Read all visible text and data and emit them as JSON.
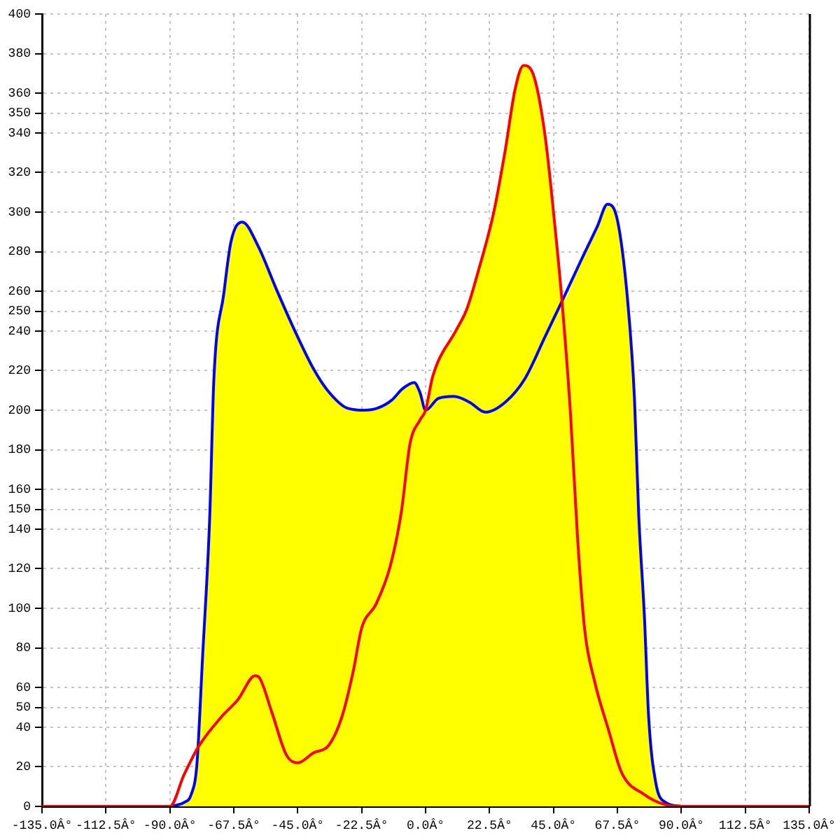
{
  "chart_data": {
    "type": "line",
    "xlim": [
      -135,
      135
    ],
    "xticks": [
      {
        "value": -135,
        "label": "-135.0Â°"
      },
      {
        "value": -112.5,
        "label": "-112.5Â°"
      },
      {
        "value": -90,
        "label": "-90.0Â°"
      },
      {
        "value": -67.5,
        "label": "-67.5Â°"
      },
      {
        "value": -45,
        "label": "-45.0Â°"
      },
      {
        "value": -22.5,
        "label": "-22.5Â°"
      },
      {
        "value": 0,
        "label": "0.0Â°"
      },
      {
        "value": 22.5,
        "label": "22.5Â°"
      },
      {
        "value": 45,
        "label": "45.0Â°"
      },
      {
        "value": 67.5,
        "label": "67.5Â°"
      },
      {
        "value": 90,
        "label": "90.0Â°"
      },
      {
        "value": 112.5,
        "label": "112.5Â°"
      },
      {
        "value": 135,
        "label": "135.0Â°"
      }
    ],
    "ylim": [
      0,
      400
    ],
    "yticks": [
      0,
      20,
      40,
      50,
      60,
      80,
      100,
      120,
      140,
      150,
      160,
      180,
      200,
      220,
      240,
      250,
      260,
      280,
      300,
      320,
      340,
      350,
      360,
      380,
      400
    ],
    "grid": true,
    "series": [
      {
        "type": "area",
        "color": "#ffff00",
        "x": [
          -90,
          -85,
          -82.5,
          -80.5,
          -78.5,
          -76,
          -74.5,
          -71,
          -68.5,
          -64.5,
          -59,
          -52.5,
          -46,
          -39.5,
          -34.5,
          -27.5,
          -21.5,
          -17,
          -12,
          -8,
          -4,
          -2,
          0,
          2.5,
          11,
          14.5,
          18.5,
          24,
          28,
          31.5,
          34.5,
          38,
          42,
          45.5,
          48,
          54.5,
          60.5,
          64,
          67.5,
          71,
          73.5,
          75,
          77,
          78.5,
          81,
          84.5,
          90
        ],
        "values": [
          0,
          2,
          6,
          21,
          75,
          145,
          216,
          259,
          285,
          295,
          283,
          261,
          240,
          221,
          210,
          201,
          200,
          201,
          205,
          211,
          214,
          209,
          200,
          217,
          241,
          251,
          270,
          300,
          331,
          362,
          374,
          369,
          339,
          293,
          255,
          275,
          293,
          304,
          296,
          257,
          206,
          147,
          96,
          45,
          12,
          2,
          0
        ]
      },
      {
        "type": "line",
        "color": "#0000ff",
        "x": [
          -90,
          -85,
          -82.5,
          -80.5,
          -78.5,
          -76,
          -74.5,
          -71,
          -68.5,
          -64.5,
          -59,
          -52.5,
          -46,
          -39.5,
          -34.5,
          -27.5,
          -21.5,
          -17,
          -12,
          -8,
          -4,
          -2,
          0,
          4.5,
          10,
          15.5,
          21,
          28,
          35,
          42,
          48,
          54.5,
          60.5,
          64,
          67.5,
          71,
          73.5,
          75,
          77,
          78.5,
          81,
          84.5,
          90
        ],
        "values": [
          0,
          2,
          6,
          21,
          75,
          145,
          216,
          259,
          285,
          295,
          283,
          261,
          240,
          221,
          210,
          201,
          200,
          201,
          205,
          211,
          214,
          209,
          200,
          206,
          207,
          204,
          199,
          204,
          216,
          237,
          255,
          275,
          293,
          304,
          296,
          257,
          206,
          147,
          96,
          45,
          12,
          2,
          0
        ]
      },
      {
        "type": "line",
        "color": "#ff0000",
        "x": [
          -135,
          -90,
          -85,
          -80,
          -72,
          -66,
          -60,
          -58.5,
          -54,
          -49,
          -45,
          -39.5,
          -34,
          -29.5,
          -25.5,
          -22.5,
          -17.5,
          -12.5,
          -8.5,
          -5.5,
          -2,
          0,
          2.5,
          11,
          14.5,
          18.5,
          24,
          28,
          31.5,
          34.5,
          38,
          42,
          45.5,
          48,
          51,
          53.5,
          56,
          59.5,
          64.5,
          69,
          77,
          84,
          90,
          135
        ],
        "values": [
          0,
          0,
          16,
          30,
          45,
          54,
          66,
          65,
          47,
          26,
          22,
          27,
          31,
          45,
          68,
          90,
          102,
          121,
          149,
          183,
          195,
          200,
          217,
          241,
          251,
          270,
          300,
          331,
          362,
          374,
          369,
          339,
          293,
          255,
          198,
          135,
          89,
          63,
          38,
          17,
          6,
          1,
          0,
          0
        ]
      }
    ]
  }
}
